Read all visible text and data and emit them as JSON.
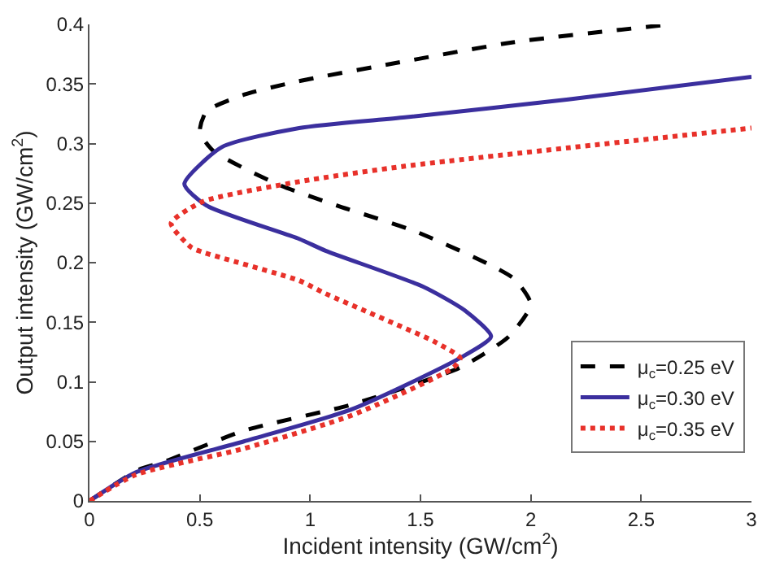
{
  "chart_data": {
    "type": "line",
    "xlabel": "Incident intensity (GW/cm$^{2}$)",
    "ylabel": "Output intensity (GW/cm$^{2}$)",
    "xlim": [
      0,
      3
    ],
    "ylim": [
      0,
      0.4
    ],
    "xticks": [
      0,
      0.5,
      1,
      1.5,
      2,
      2.5,
      3
    ],
    "yticks": [
      0,
      0.05,
      0.1,
      0.15,
      0.2,
      0.25,
      0.3,
      0.35,
      0.4
    ],
    "legend": "bottom right",
    "marker": "none",
    "series": [
      {
        "name": "μ$_{c}$=0.25 eV",
        "color": "#000000",
        "line_style": "dashed",
        "x": [
          0,
          0.22,
          0.34,
          0.7,
          1.19,
          1.68,
          1.9,
          2.0,
          1.92,
          1.48,
          1.12,
          0.85,
          0.56,
          0.5,
          0.53,
          0.7,
          0.94,
          1.43,
          1.92,
          2.63
        ],
        "values": [
          0,
          0.026,
          0.033,
          0.059,
          0.081,
          0.112,
          0.138,
          0.165,
          0.187,
          0.226,
          0.248,
          0.266,
          0.294,
          0.31,
          0.327,
          0.341,
          0.352,
          0.369,
          0.385,
          0.4
        ]
      },
      {
        "name": "μ$_{c}$=0.30 eV",
        "color": "#3b2f9e",
        "line_style": "solid",
        "x": [
          0,
          0.21,
          0.7,
          1.19,
          1.68,
          1.82,
          1.7,
          1.51,
          1.07,
          0.95,
          0.53,
          0.43,
          0.6,
          0.95,
          1.43,
          2.17,
          3.0
        ],
        "values": [
          0,
          0.024,
          0.05,
          0.077,
          0.12,
          0.138,
          0.16,
          0.18,
          0.21,
          0.22,
          0.248,
          0.266,
          0.297,
          0.313,
          0.322,
          0.337,
          0.356
        ]
      },
      {
        "name": "μ$_{c}$=0.35 eV",
        "color": "#e8312a",
        "line_style": "dotted",
        "x": [
          0,
          0.21,
          0.7,
          1.19,
          1.65,
          1.68,
          1.56,
          1.07,
          0.95,
          0.51,
          0.46,
          0.37,
          0.51,
          0.95,
          1.43,
          3.0
        ],
        "values": [
          0,
          0.022,
          0.044,
          0.072,
          0.112,
          0.12,
          0.134,
          0.174,
          0.185,
          0.209,
          0.213,
          0.233,
          0.251,
          0.268,
          0.281,
          0.313
        ]
      }
    ]
  }
}
